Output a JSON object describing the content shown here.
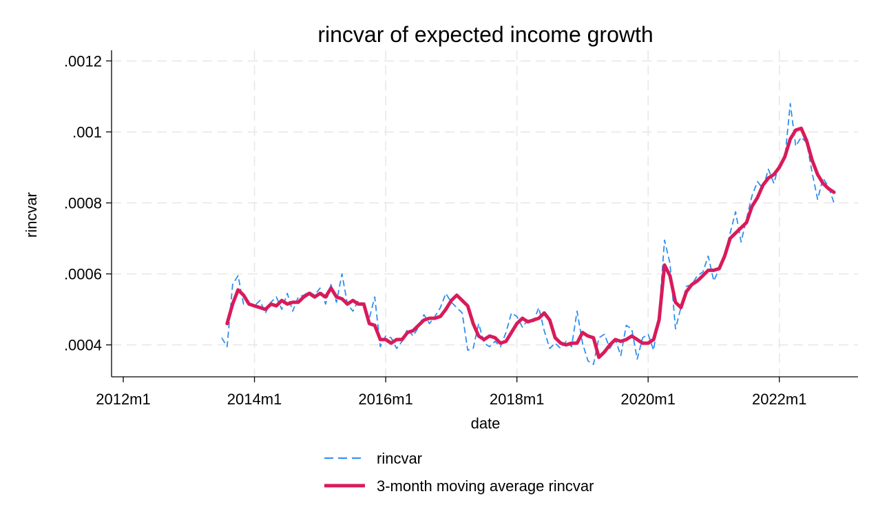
{
  "chart_data": {
    "type": "line",
    "title": "rincvar of expected income growth",
    "xlabel": "date",
    "ylabel": "rincvar",
    "x_start": "2013m7",
    "x_end": "2022m12",
    "xlim": [
      "2012m1",
      "2023m1"
    ],
    "ylim": [
      0.00031,
      0.00123
    ],
    "x_ticks": [
      "2012m1",
      "2014m1",
      "2016m1",
      "2018m1",
      "2020m1",
      "2022m1"
    ],
    "y_ticks": [
      0.0004,
      0.0006,
      0.0008,
      0.001,
      0.0012
    ],
    "y_tick_labels": [
      ".0004",
      ".0006",
      ".0008",
      ".001",
      ".0012"
    ],
    "grid": true,
    "legend_position": "bottom",
    "series": [
      {
        "name": "rincvar",
        "color": "#2c8ef0",
        "style": "dashed",
        "values": [
          0.00042,
          0.000395,
          0.00057,
          0.000595,
          0.000515,
          0.000515,
          0.00051,
          0.000525,
          0.00049,
          0.00052,
          0.000535,
          0.0005,
          0.000545,
          0.000495,
          0.000535,
          0.00054,
          0.00055,
          0.00054,
          0.00056,
          0.000515,
          0.00057,
          0.00052,
          0.0006,
          0.000515,
          0.000495,
          0.000525,
          0.00051,
          0.000475,
          0.000535,
          0.000395,
          0.000425,
          0.00042,
          0.00039,
          0.00041,
          0.000445,
          0.000425,
          0.00045,
          0.000485,
          0.00046,
          0.00048,
          0.000505,
          0.000545,
          0.00052,
          0.000505,
          0.00049,
          0.000385,
          0.00039,
          0.00046,
          0.000405,
          0.000395,
          0.00041,
          0.000395,
          0.000435,
          0.00049,
          0.00048,
          0.00045,
          0.00047,
          0.000465,
          0.000505,
          0.00044,
          0.00039,
          0.000405,
          0.00039,
          0.00041,
          0.000395,
          0.000495,
          0.000405,
          0.000355,
          0.000345,
          0.00042,
          0.00043,
          0.00039,
          0.000415,
          0.00037,
          0.000455,
          0.000445,
          0.00036,
          0.00042,
          0.00043,
          0.000385,
          0.00049,
          0.000695,
          0.00063,
          0.000445,
          0.000505,
          0.000565,
          0.00057,
          0.000595,
          0.000605,
          0.00065,
          0.00058,
          0.000615,
          0.000655,
          0.000715,
          0.000775,
          0.00069,
          0.000755,
          0.00082,
          0.00086,
          0.00084,
          0.000895,
          0.000855,
          0.00091,
          0.000925,
          0.00108,
          0.00096,
          0.000985,
          0.00097,
          0.000885,
          0.00081,
          0.00087,
          0.000845,
          0.0008
        ]
      },
      {
        "name": "3-month moving average rincvar",
        "color": "#d81b5a",
        "style": "solid",
        "values": [
          null,
          0.00046,
          0.000515,
          0.000555,
          0.00054,
          0.000515,
          0.00051,
          0.000505,
          0.0005,
          0.000515,
          0.00051,
          0.000525,
          0.000515,
          0.00052,
          0.00052,
          0.000535,
          0.000545,
          0.000535,
          0.000545,
          0.000535,
          0.00056,
          0.000535,
          0.00053,
          0.000515,
          0.000525,
          0.000515,
          0.000515,
          0.00046,
          0.000455,
          0.000415,
          0.000415,
          0.000405,
          0.000415,
          0.000415,
          0.000435,
          0.00044,
          0.000455,
          0.00047,
          0.000475,
          0.000475,
          0.00048,
          0.0005,
          0.000525,
          0.00054,
          0.000525,
          0.00051,
          0.00046,
          0.000425,
          0.000415,
          0.000425,
          0.00042,
          0.000405,
          0.00041,
          0.000435,
          0.00046,
          0.000475,
          0.000465,
          0.00047,
          0.000475,
          0.00049,
          0.00047,
          0.00042,
          0.000405,
          0.0004,
          0.000405,
          0.000405,
          0.000435,
          0.000425,
          0.00042,
          0.000365,
          0.00038,
          0.0004,
          0.000415,
          0.00041,
          0.000415,
          0.000425,
          0.000415,
          0.000405,
          0.000405,
          0.000415,
          0.00047,
          0.000625,
          0.000595,
          0.00052,
          0.000505,
          0.00055,
          0.00057,
          0.00058,
          0.000595,
          0.00061,
          0.00061,
          0.000615,
          0.00065,
          0.0007,
          0.000715,
          0.00073,
          0.000745,
          0.00079,
          0.000815,
          0.00085,
          0.00087,
          0.00088,
          0.0009,
          0.00093,
          0.00098,
          0.001005,
          0.00101,
          0.000975,
          0.00092,
          0.00088,
          0.000855,
          0.00084,
          0.00083
        ]
      }
    ]
  }
}
